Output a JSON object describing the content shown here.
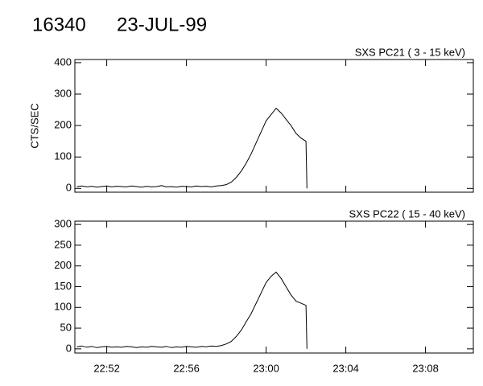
{
  "header": {
    "id": "16340",
    "date": "23-JUL-99"
  },
  "chart_data": [
    {
      "type": "line",
      "title": "SXS PC21  (  3 - 15 keV)",
      "y_label": "CTS/SEC",
      "xlim": [
        1370.4,
        1390.4
      ],
      "ylim": [
        -12,
        410
      ],
      "yticks": [
        0,
        100,
        200,
        300,
        400
      ],
      "x": [
        1370.5,
        1370.75,
        1371,
        1371.25,
        1371.5,
        1371.75,
        1372,
        1372.25,
        1372.5,
        1372.75,
        1373,
        1373.25,
        1373.5,
        1373.75,
        1374,
        1374.25,
        1374.5,
        1374.75,
        1375,
        1375.25,
        1375.5,
        1375.75,
        1376,
        1376.25,
        1376.5,
        1376.75,
        1377,
        1377.25,
        1377.5,
        1377.75,
        1378,
        1378.25,
        1378.5,
        1378.75,
        1379,
        1379.25,
        1379.5,
        1379.75,
        1380,
        1380.25,
        1380.5,
        1380.75,
        1381,
        1381.25,
        1381.5,
        1381.75,
        1382,
        1382.05
      ],
      "series": [
        {
          "color": "#000000",
          "values": [
            6,
            8,
            5,
            7,
            4,
            6,
            8,
            5,
            7,
            6,
            5,
            8,
            6,
            4,
            7,
            5,
            6,
            9,
            5,
            6,
            4,
            7,
            6,
            5,
            8,
            6,
            7,
            5,
            8,
            9,
            12,
            20,
            35,
            55,
            80,
            110,
            145,
            180,
            215,
            235,
            255,
            240,
            220,
            200,
            175,
            160,
            150,
            0
          ]
        }
      ]
    },
    {
      "type": "line",
      "title": "SXS PC22  ( 15 - 40 keV)",
      "xlim": [
        1370.4,
        1390.4
      ],
      "ylim": [
        -10,
        308
      ],
      "yticks": [
        0,
        50,
        100,
        150,
        200,
        250,
        300
      ],
      "xticks": [
        {
          "value": 1372,
          "label": "22:52"
        },
        {
          "value": 1376,
          "label": "22:56"
        },
        {
          "value": 1380,
          "label": "23:00"
        },
        {
          "value": 1384,
          "label": "23:04"
        },
        {
          "value": 1388,
          "label": "23:08"
        }
      ],
      "x": [
        1370.5,
        1370.75,
        1371,
        1371.25,
        1371.5,
        1371.75,
        1372,
        1372.25,
        1372.5,
        1372.75,
        1373,
        1373.25,
        1373.5,
        1373.75,
        1374,
        1374.25,
        1374.5,
        1374.75,
        1375,
        1375.25,
        1375.5,
        1375.75,
        1376,
        1376.25,
        1376.5,
        1376.75,
        1377,
        1377.25,
        1377.5,
        1377.75,
        1378,
        1378.25,
        1378.5,
        1378.75,
        1379,
        1379.25,
        1379.5,
        1379.75,
        1380,
        1380.25,
        1380.5,
        1380.75,
        1381,
        1381.25,
        1381.5,
        1381.75,
        1382,
        1382.05
      ],
      "series": [
        {
          "color": "#000000",
          "values": [
            5,
            7,
            4,
            6,
            3,
            5,
            6,
            4,
            5,
            4,
            6,
            5,
            3,
            5,
            4,
            6,
            5,
            4,
            6,
            3,
            5,
            4,
            6,
            5,
            4,
            6,
            5,
            7,
            6,
            8,
            12,
            18,
            30,
            45,
            65,
            85,
            110,
            135,
            160,
            175,
            185,
            170,
            150,
            130,
            115,
            110,
            105,
            0
          ]
        }
      ]
    }
  ]
}
